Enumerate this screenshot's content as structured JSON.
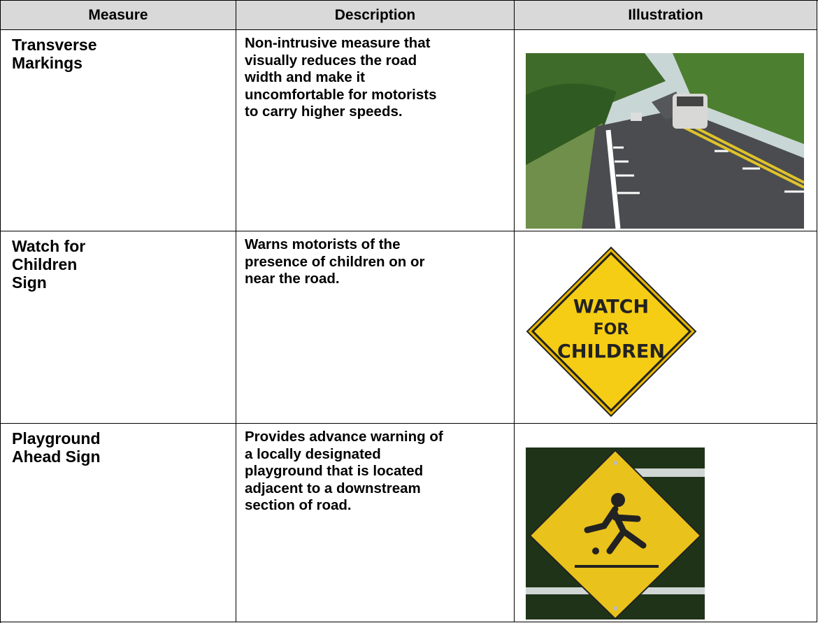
{
  "table": {
    "header": [
      "Measure",
      "Description",
      "Illustration"
    ],
    "rows": [
      {
        "measure": [
          "Transverse",
          "Markings"
        ],
        "description": [
          "Non-intrusive measure that",
          "visually reduces the road",
          "width and make it",
          "uncomfortable for motorists",
          "to carry higher speeds."
        ]
      },
      {
        "measure": [
          "Watch for",
          "Children",
          "Sign"
        ],
        "description": [
          "Warns motorists of the",
          "presence of children on or",
          "near the road."
        ],
        "sign": [
          "WATCH",
          "FOR",
          "CHILDREN"
        ]
      },
      {
        "measure": [
          "Playground",
          "Ahead Sign"
        ],
        "description": [
          "Provides advance warning of",
          "a locally designated",
          "playground that is located",
          "adjacent to a downstream",
          "section of road."
        ]
      }
    ]
  }
}
